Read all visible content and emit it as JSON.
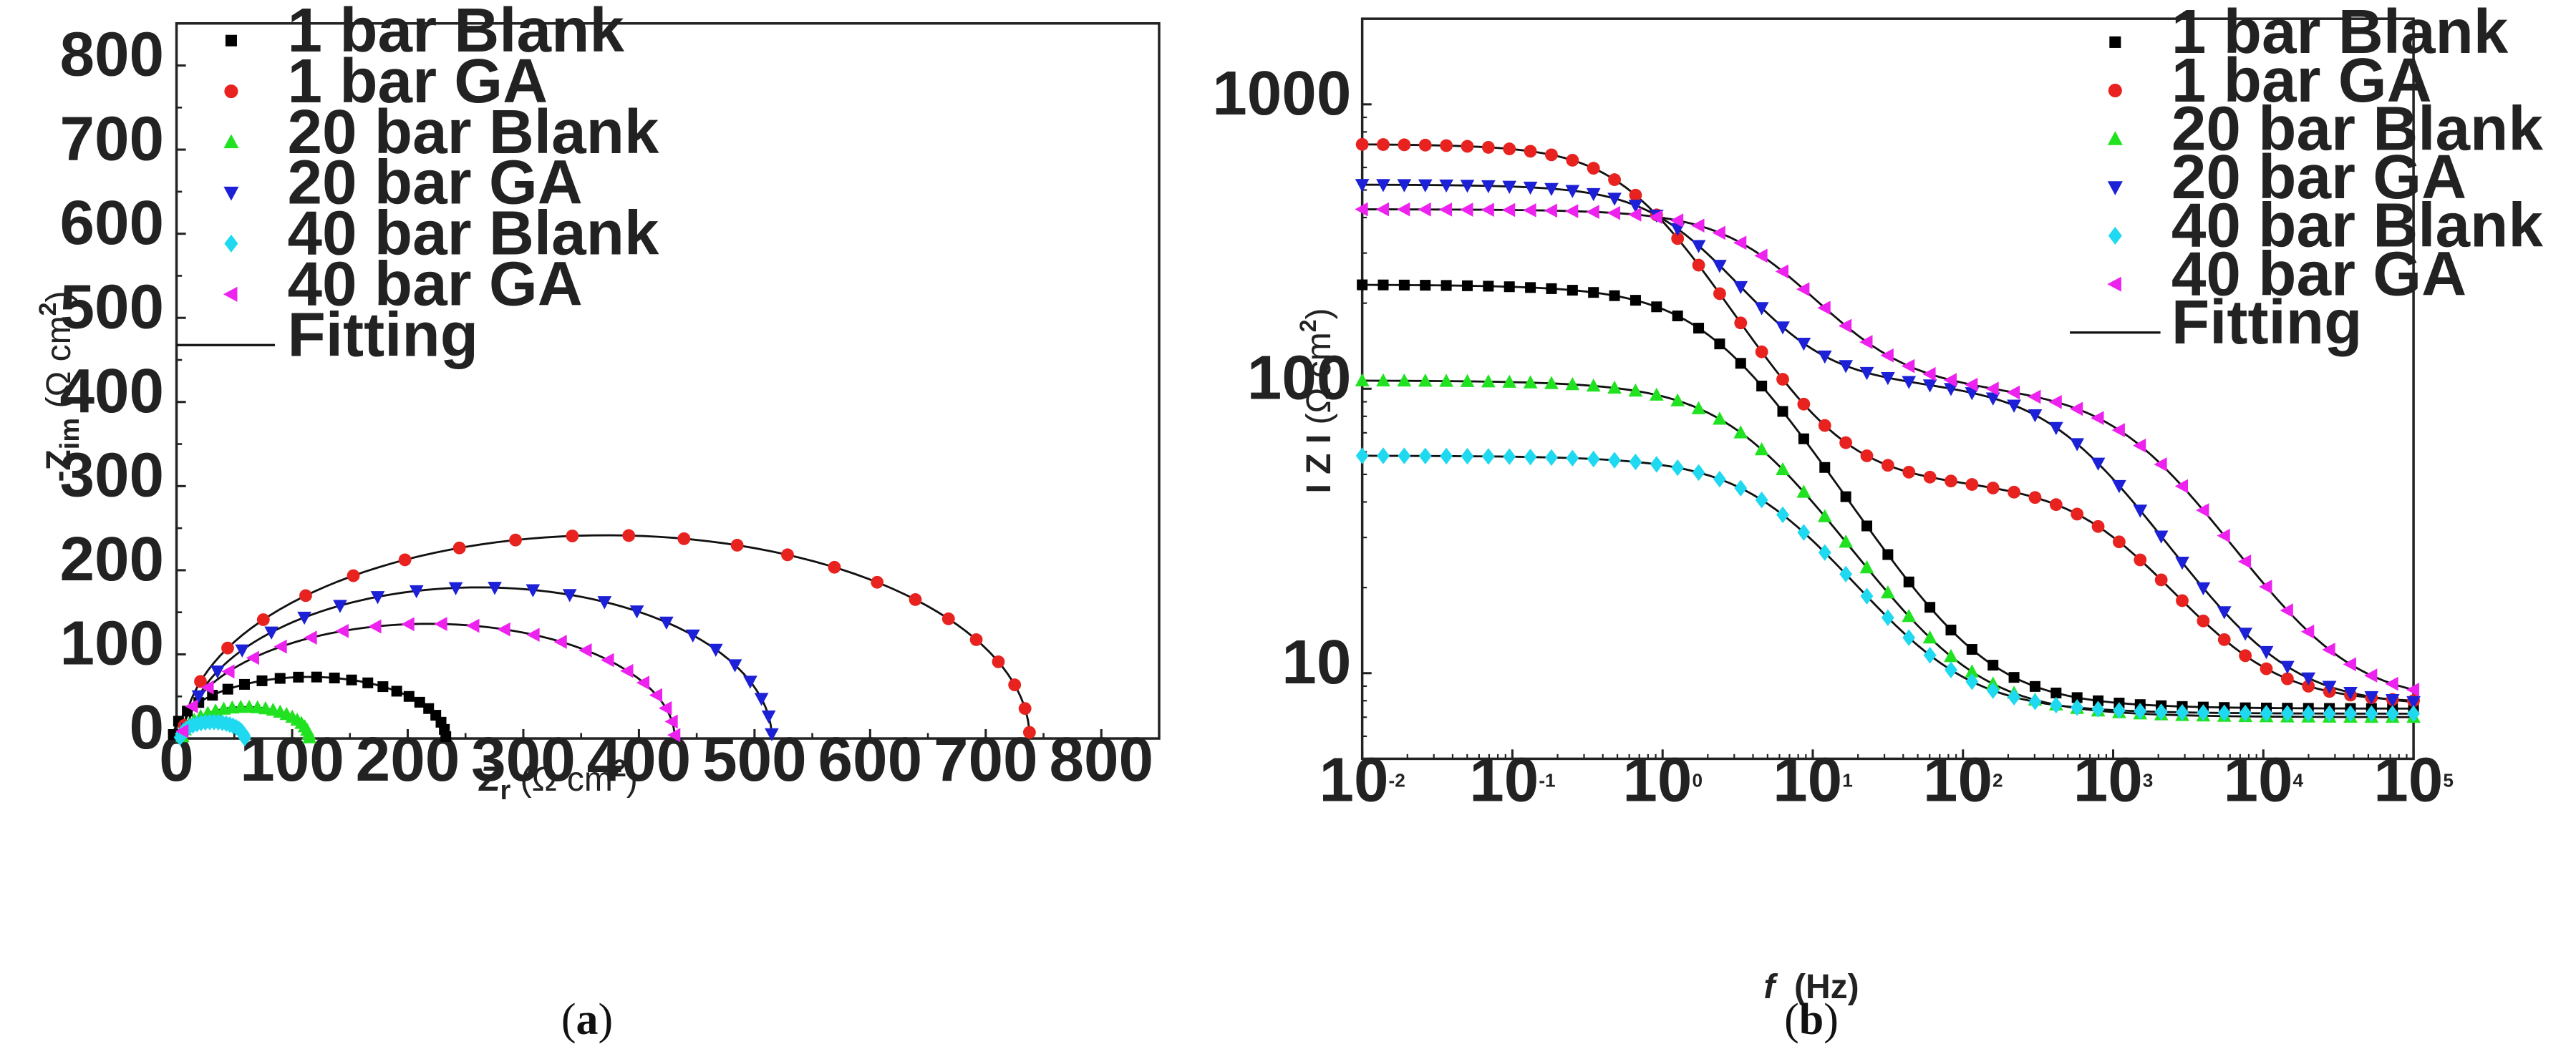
{
  "chart_data": [
    {
      "type": "scatter",
      "panel": "(a)",
      "caption_open": "(",
      "caption_letter": "a",
      "caption_close": ")",
      "xlabel_main": "Z",
      "xlabel_sub": "r",
      "xlabel_unit": " (Ω cm",
      "xlabel_sup": "2",
      "xlabel_close": ")",
      "ylabel_main": "-Z",
      "ylabel_sub": "im",
      "ylabel_unit": " (Ω cm",
      "ylabel_sup": "2",
      "ylabel_close": ")",
      "xlim": [
        0,
        850
      ],
      "ylim": [
        0,
        850
      ],
      "xticks": [
        "0",
        "100",
        "200",
        "300",
        "400",
        "500",
        "600",
        "700",
        "800"
      ],
      "yticks": [
        "0",
        "100",
        "200",
        "300",
        "400",
        "500",
        "600",
        "700",
        "800"
      ],
      "fit_label": "Fitting",
      "series": [
        {
          "name": "1 bar Blank",
          "color": "#000000",
          "marker": "square",
          "fit": {
            "center": 115,
            "radius": 118,
            "sx": 0.62
          }
        },
        {
          "name": "1 bar GA",
          "color": "#e8221f",
          "marker": "circle",
          "fit": {
            "center": 372,
            "radius": 366,
            "sx": 0.66
          }
        },
        {
          "name": "20 bar Blank",
          "color": "#21e221",
          "marker": "triangle-up",
          "fit": {
            "center": 60,
            "radius": 55,
            "sx": 0.68
          }
        },
        {
          "name": "20 bar GA",
          "color": "#1c20d6",
          "marker": "triangle-down",
          "fit": {
            "center": 262,
            "radius": 253,
            "sx": 0.71
          }
        },
        {
          "name": "40 bar Blank",
          "color": "#1ed9f0",
          "marker": "diamond",
          "fit": {
            "center": 31,
            "radius": 28,
            "sx": 0.7
          }
        },
        {
          "name": "40 bar GA",
          "color": "#ee22ee",
          "marker": "triangle-left",
          "fit": {
            "center": 218,
            "radius": 213,
            "sx": 0.64
          }
        }
      ]
    },
    {
      "type": "scatter",
      "panel": "(b)",
      "caption_open": "(",
      "caption_letter": "b",
      "caption_close": ")",
      "xscale": "log",
      "yscale": "log",
      "xlabel_main": "f",
      "xlabel_unit": "  (Hz)",
      "ylabel_main": "I Z I",
      "ylabel_unit": " (Ω cm",
      "ylabel_sup": "2",
      "ylabel_close": ")",
      "xlim": [
        0.01,
        100000
      ],
      "ylim": [
        5,
        2000
      ],
      "xticks": [
        {
          "base": "10",
          "exp": "-2",
          "value": 0.01
        },
        {
          "base": "10",
          "exp": "-1",
          "value": 0.1
        },
        {
          "base": "10",
          "exp": "0",
          "value": 1
        },
        {
          "base": "10",
          "exp": "1",
          "value": 10
        },
        {
          "base": "10",
          "exp": "2",
          "value": 100
        },
        {
          "base": "10",
          "exp": "3",
          "value": 1000
        },
        {
          "base": "10",
          "exp": "4",
          "value": 10000
        },
        {
          "base": "10",
          "exp": "5",
          "value": 100000
        }
      ],
      "yticks": [
        {
          "label": "10",
          "value": 10
        },
        {
          "label": "100",
          "value": 100
        },
        {
          "label": "1000",
          "value": 1000
        }
      ],
      "fit_label": "Fitting",
      "series": [
        {
          "name": "1 bar Blank",
          "color": "#000000",
          "marker": "square",
          "fit": {
            "rs": 7.5,
            "r1": 225,
            "f1": 2.2,
            "n1": 0.85,
            "r2": 0,
            "f2": 1,
            "n2": 0.8
          }
        },
        {
          "name": "1 bar GA",
          "color": "#e8221f",
          "marker": "circle",
          "fit": {
            "rs": 7.8,
            "r1": 680,
            "f1": 0.65,
            "n1": 0.9,
            "r2": 38,
            "f2": 900,
            "n2": 0.85
          }
        },
        {
          "name": "20 bar Blank",
          "color": "#21e221",
          "marker": "triangle-up",
          "fit": {
            "rs": 7,
            "r1": 100,
            "f1": 3.5,
            "n1": 0.83,
            "r2": 0,
            "f2": 1,
            "n2": 0.8
          }
        },
        {
          "name": "20 bar GA",
          "color": "#1c20d6",
          "marker": "triangle-down",
          "fit": {
            "rs": 7.6,
            "r1": 420,
            "f1": 1.3,
            "n1": 0.9,
            "r2": 95,
            "f2": 500,
            "n2": 0.85
          }
        },
        {
          "name": "40 bar Blank",
          "color": "#1ed9f0",
          "marker": "diamond",
          "fit": {
            "rs": 7.2,
            "r1": 51,
            "f1": 5.5,
            "n1": 0.83,
            "r2": 0,
            "f2": 1,
            "n2": 0.8
          }
        },
        {
          "name": "40 bar GA",
          "color": "#ee22ee",
          "marker": "triangle-left",
          "fit": {
            "rs": 7.8,
            "r1": 330,
            "f1": 4.5,
            "n1": 0.87,
            "r2": 90,
            "f2": 1400,
            "n2": 0.85
          }
        }
      ]
    }
  ]
}
